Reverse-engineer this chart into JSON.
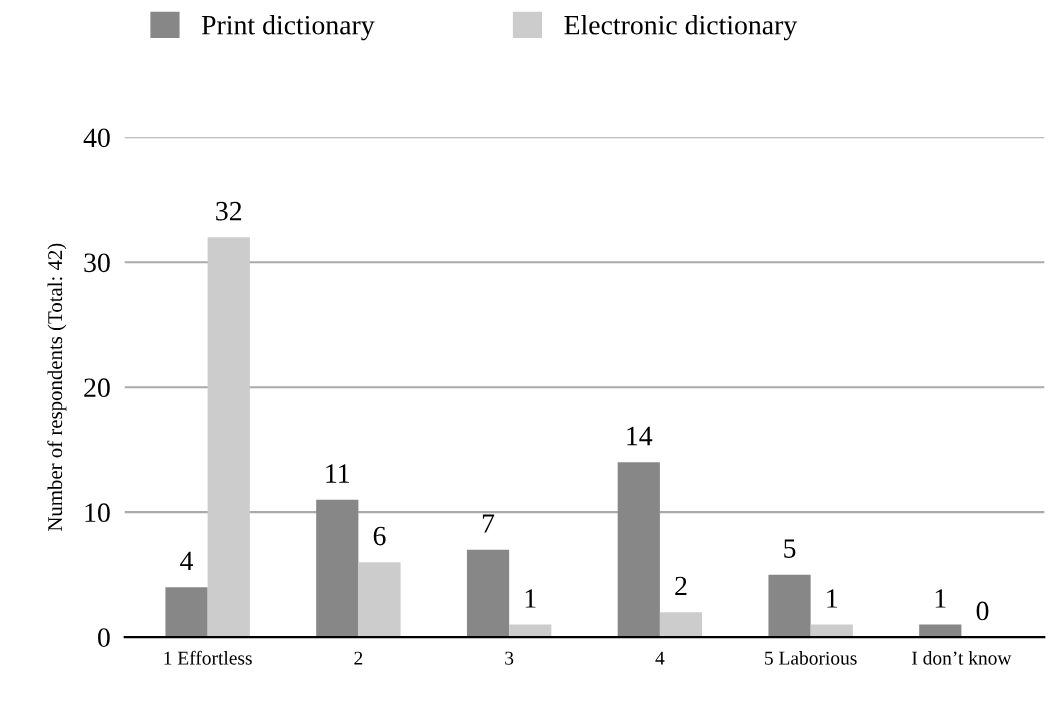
{
  "chart_data": {
    "type": "bar",
    "ylabel": "Number of respondents (Total: 42)",
    "categories": [
      "1 Effortless",
      "2",
      "3",
      "4",
      "5 Laborious",
      "I don’t know"
    ],
    "series": [
      {
        "name": "Print dictionary",
        "color": "#878787",
        "values": [
          4,
          11,
          7,
          14,
          5,
          1
        ]
      },
      {
        "name": "Electronic dictionary",
        "color": "#cccccc",
        "values": [
          32,
          6,
          1,
          2,
          1,
          0
        ]
      }
    ],
    "ylim": [
      0,
      40
    ],
    "yticks": [
      0,
      10,
      20,
      30,
      40
    ],
    "grid": "y",
    "legend": "top",
    "data_labels": true
  }
}
